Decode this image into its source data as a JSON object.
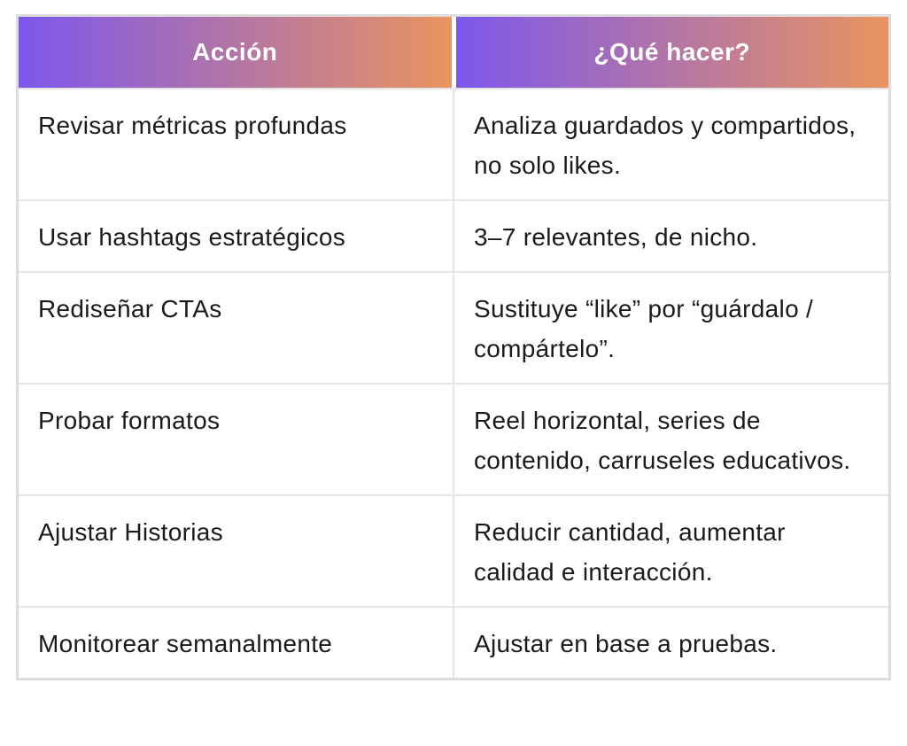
{
  "theme": {
    "gradient_start": "#7d57ec",
    "gradient_end": "#e9945f",
    "header_text_color": "#ffffff",
    "body_text_color": "#1a1a1a",
    "border_color": "#dcdcdc",
    "divider_color": "#e5e5e5",
    "background": "#ffffff"
  },
  "table": {
    "headers": [
      "Acción",
      "¿Qué hacer?"
    ],
    "rows": [
      {
        "accion": "Revisar métricas profundas",
        "que_hacer": "Analiza guardados y compartidos, no solo likes."
      },
      {
        "accion": "Usar hashtags estratégicos",
        "que_hacer": "3–7 relevantes, de nicho."
      },
      {
        "accion": "Rediseñar CTAs",
        "que_hacer": "Sustituye “like” por “guárdalo / compártelo”."
      },
      {
        "accion": "Probar formatos",
        "que_hacer": "Reel horizontal, series de contenido, carruseles educativos."
      },
      {
        "accion": "Ajustar Historias",
        "que_hacer": "Reducir cantidad, aumentar calidad e interacción."
      },
      {
        "accion": "Monitorear semanalmente",
        "que_hacer": "Ajustar en base a pruebas."
      }
    ]
  }
}
